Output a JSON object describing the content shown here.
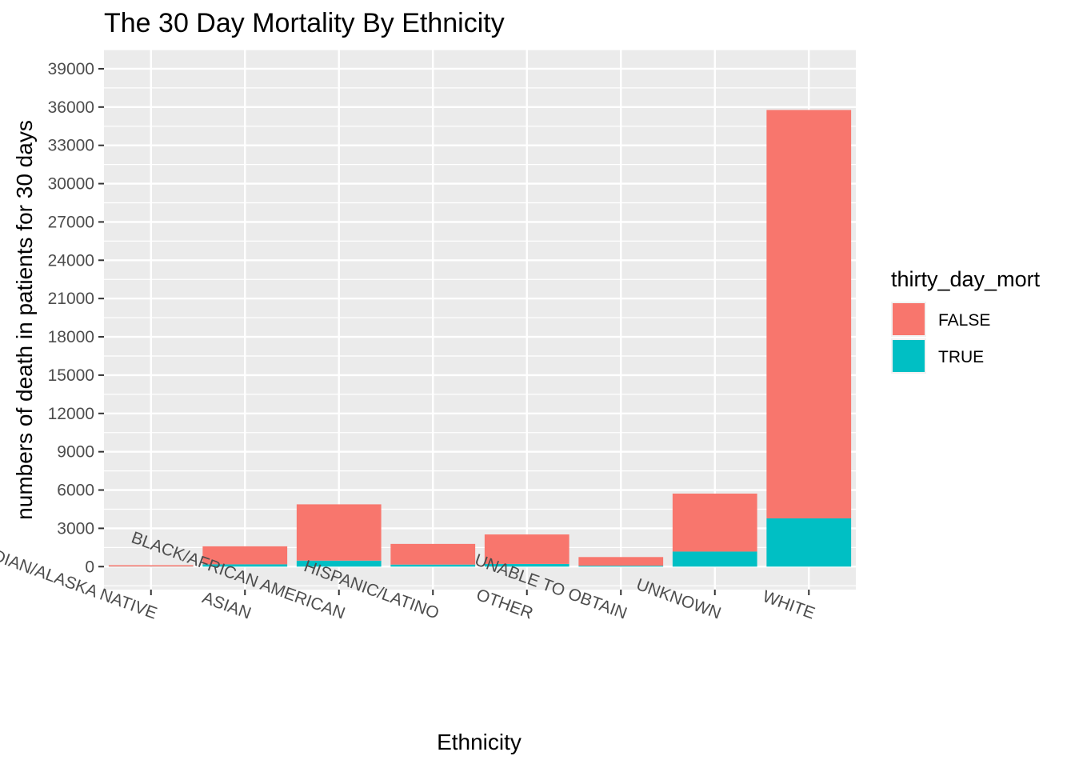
{
  "chart_data": {
    "type": "bar",
    "stacked": true,
    "title": "The 30 Day Mortality By Ethnicity",
    "xlabel": "Ethnicity",
    "ylabel": "numbers of death in patients for 30 days",
    "categories": [
      "AMERICAN INDIAN/ALASKA NATIVE",
      "ASIAN",
      "BLACK/AFRICAN AMERICAN",
      "HISPANIC/LATINO",
      "OTHER",
      "UNABLE TO OBTAIN",
      "UNKNOWN",
      "WHITE"
    ],
    "series": [
      {
        "name": "TRUE",
        "color": "#00BFC4",
        "values": [
          10,
          180,
          470,
          160,
          210,
          70,
          1180,
          3780
        ]
      },
      {
        "name": "FALSE",
        "color": "#F8766D",
        "values": [
          100,
          1410,
          4410,
          1620,
          2310,
          680,
          4540,
          31990
        ]
      }
    ],
    "ylim": [
      -1800,
      40500
    ],
    "yticks": [
      0,
      3000,
      6000,
      9000,
      12000,
      15000,
      18000,
      21000,
      24000,
      27000,
      30000,
      33000,
      36000,
      39000
    ],
    "grid": true,
    "panel_background": "#EBEBEB",
    "legend": {
      "title": "thirty_day_mort",
      "position": "right",
      "entries": [
        {
          "label": "FALSE",
          "color": "#F8766D"
        },
        {
          "label": "TRUE",
          "color": "#00BFC4"
        }
      ]
    },
    "x_tick_rotation_deg": 20
  }
}
